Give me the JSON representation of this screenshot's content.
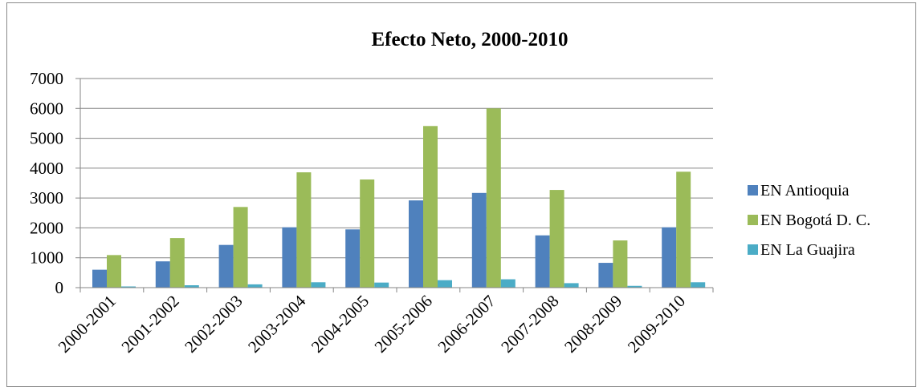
{
  "chart_data": {
    "type": "bar",
    "title": "Efecto Neto, 2000-2010",
    "xlabel": "",
    "ylabel": "",
    "ylim": [
      0,
      7000
    ],
    "yticks": [
      0,
      1000,
      2000,
      3000,
      4000,
      5000,
      6000,
      7000
    ],
    "grid": true,
    "legend_position": "right",
    "categories": [
      "2000-2001",
      "2001-2002",
      "2002-2003",
      "2003-2004",
      "2004-2005",
      "2005-2006",
      "2006-2007",
      "2007-2008",
      "2008-2009",
      "2009-2010"
    ],
    "series": [
      {
        "name": "EN Antioquia",
        "color": "#4f81bd",
        "values": [
          600,
          880,
          1430,
          2020,
          1950,
          2920,
          3170,
          1750,
          830,
          2020
        ]
      },
      {
        "name": "EN Bogotá D. C.",
        "color": "#9bbb59",
        "values": [
          1090,
          1660,
          2700,
          3860,
          3620,
          5410,
          6000,
          3270,
          1580,
          3880
        ]
      },
      {
        "name": "EN La Guajira",
        "color": "#4bacc6",
        "values": [
          40,
          80,
          110,
          180,
          170,
          250,
          280,
          150,
          60,
          180
        ]
      }
    ]
  }
}
